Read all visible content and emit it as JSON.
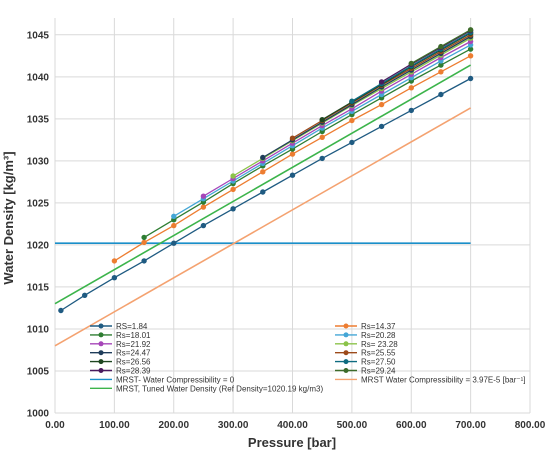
{
  "chart_data": {
    "type": "line",
    "title": "",
    "xlabel": "Pressure [bar]",
    "ylabel": "Water Density [kg/m³]",
    "xlim": [
      0,
      800
    ],
    "ylim": [
      1000,
      1047
    ],
    "x_ticks": [
      "0.00",
      "100.00",
      "200.00",
      "300.00",
      "400.00",
      "500.00",
      "600.00",
      "700.00",
      "800.00"
    ],
    "y_ticks": [
      "1000",
      "1005",
      "1010",
      "1015",
      "1020",
      "1025",
      "1030",
      "1035",
      "1040",
      "1045"
    ],
    "grid": "vertical and horizontal",
    "legend_position": "bottom-inside",
    "series": [
      {
        "name": "RS=1.84",
        "color": "#1f5b82",
        "marker": true,
        "x": [
          10,
          50,
          100,
          150,
          200,
          250,
          300,
          350,
          400,
          450,
          500,
          550,
          600,
          650,
          700
        ],
        "y": [
          1012.2,
          1014.0,
          1016.1,
          1018.1,
          1020.2,
          1022.3,
          1024.3,
          1026.3,
          1028.3,
          1030.3,
          1032.2,
          1034.1,
          1036.0,
          1037.9,
          1039.8
        ]
      },
      {
        "name": "Rs=14.37",
        "color": "#ed7d31",
        "marker": true,
        "x": [
          100,
          150,
          200,
          250,
          300,
          350,
          400,
          450,
          500,
          550,
          600,
          650,
          700
        ],
        "y": [
          1018.1,
          1020.3,
          1022.3,
          1024.5,
          1026.6,
          1028.7,
          1030.8,
          1032.8,
          1034.8,
          1036.7,
          1038.7,
          1040.6,
          1042.5
        ]
      },
      {
        "name": "Rs=18.01",
        "color": "#2e7d32",
        "marker": true,
        "x": [
          150,
          200,
          250,
          300,
          350,
          400,
          450,
          500,
          550,
          600,
          650,
          700
        ],
        "y": [
          1020.9,
          1023.0,
          1025.1,
          1027.3,
          1029.4,
          1031.4,
          1033.5,
          1035.5,
          1037.5,
          1039.5,
          1041.4,
          1043.3
        ]
      },
      {
        "name": "Rs=20.28",
        "color": "#44a6d6",
        "marker": true,
        "x": [
          200,
          250,
          300,
          350,
          400,
          450,
          500,
          550,
          600,
          650,
          700
        ],
        "y": [
          1023.4,
          1025.5,
          1027.6,
          1029.7,
          1031.8,
          1033.9,
          1035.9,
          1037.9,
          1039.9,
          1041.9,
          1043.8
        ]
      },
      {
        "name": "Rs=21.92",
        "color": "#a646b8",
        "marker": true,
        "x": [
          250,
          300,
          350,
          400,
          450,
          500,
          550,
          600,
          650,
          700
        ],
        "y": [
          1025.8,
          1027.9,
          1030.0,
          1032.1,
          1034.2,
          1036.2,
          1038.3,
          1040.3,
          1042.3,
          1044.2
        ]
      },
      {
        "name": "Rs= 23.28",
        "color": "#8bc34a",
        "marker": true,
        "x": [
          300,
          350,
          400,
          450,
          500,
          550,
          600,
          650,
          700
        ],
        "y": [
          1028.2,
          1030.3,
          1032.4,
          1034.5,
          1036.6,
          1038.6,
          1040.6,
          1042.6,
          1044.6
        ]
      },
      {
        "name": "Rs=24.47",
        "color": "#1f3d5a",
        "marker": true,
        "x": [
          350,
          400,
          450,
          500,
          550,
          600,
          650,
          700
        ],
        "y": [
          1030.4,
          1032.5,
          1034.6,
          1036.7,
          1038.8,
          1040.8,
          1042.8,
          1044.8
        ]
      },
      {
        "name": "Rs=25.55",
        "color": "#9c4a1a",
        "marker": true,
        "x": [
          400,
          450,
          500,
          550,
          600,
          650,
          700
        ],
        "y": [
          1032.7,
          1034.8,
          1036.9,
          1039.0,
          1041.0,
          1043.0,
          1045.0
        ]
      },
      {
        "name": "Rs=26.56",
        "color": "#1e4620",
        "marker": true,
        "x": [
          450,
          500,
          550,
          600,
          650,
          700
        ],
        "y": [
          1034.9,
          1037.0,
          1039.1,
          1041.2,
          1043.2,
          1045.2
        ]
      },
      {
        "name": "Rs=27.50",
        "color": "#0e6b80",
        "marker": true,
        "x": [
          500,
          550,
          600,
          650,
          700
        ],
        "y": [
          1037.1,
          1039.2,
          1041.3,
          1043.3,
          1045.3
        ]
      },
      {
        "name": "Rs=28.39",
        "color": "#4a1a5e",
        "marker": true,
        "x": [
          550,
          600,
          650,
          700
        ],
        "y": [
          1039.4,
          1041.5,
          1043.5,
          1045.5
        ]
      },
      {
        "name": "Rs=29.24",
        "color": "#3d6b2a",
        "marker": true,
        "x": [
          600,
          650,
          700
        ],
        "y": [
          1041.6,
          1043.6,
          1045.6
        ]
      },
      {
        "name": "MRST- Water Compressibility = 0",
        "color": "#1a8fc9",
        "marker": false,
        "x": [
          0,
          700
        ],
        "y": [
          1020.2,
          1020.2
        ]
      },
      {
        "name": "MRST Water Compressibility = 3.97E-5 [bar⁻¹]",
        "color": "#f4a270",
        "marker": false,
        "x": [
          0,
          700
        ],
        "y": [
          1008.0,
          1036.3
        ]
      },
      {
        "name": "MRST, Tuned Water Density (Ref Density=1020.19 kg/m3)",
        "color": "#3cb44b",
        "marker": false,
        "x": [
          0,
          700
        ],
        "y": [
          1013.0,
          1041.4
        ]
      }
    ]
  }
}
